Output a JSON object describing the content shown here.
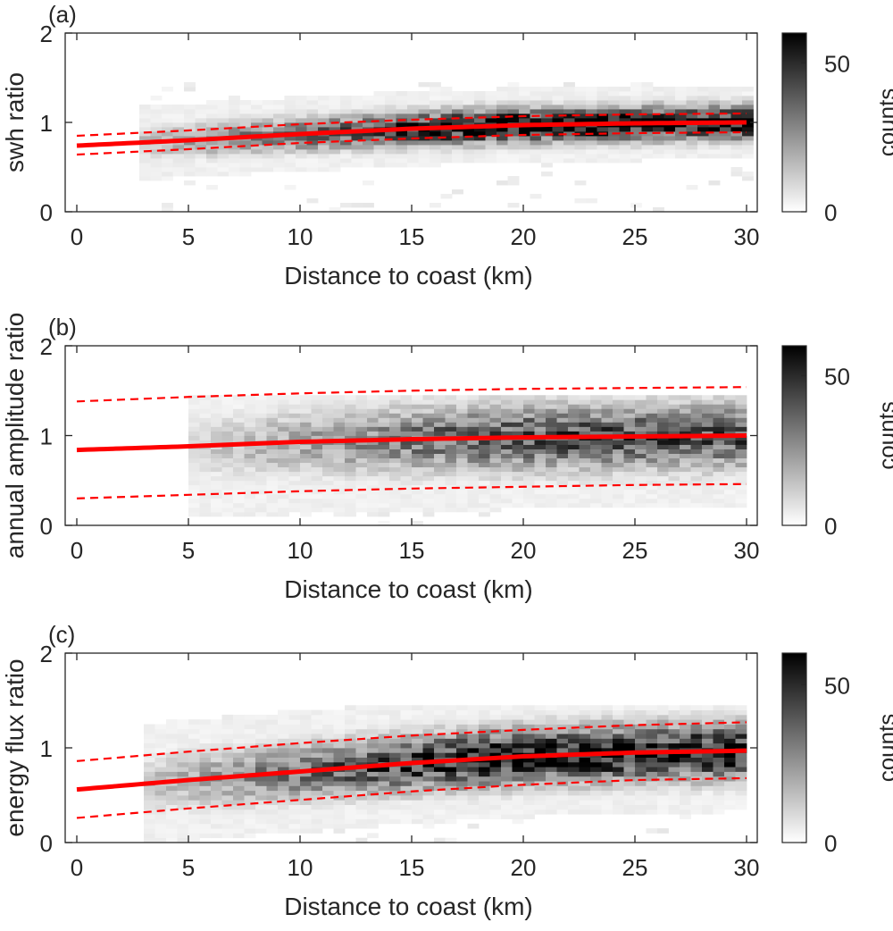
{
  "figure": {
    "type": "heatmap",
    "colors": {
      "fit_line": "#ff0000",
      "axis": "#262626",
      "background": "#ffffff"
    }
  },
  "chart_data": [
    {
      "type": "heatmap",
      "panel_label": "(a)",
      "title": "",
      "xlabel": "Distance to coast (km)",
      "ylabel": "swh ratio",
      "xlim": [
        0,
        30
      ],
      "ylim": [
        0,
        2
      ],
      "xticks": [
        "0",
        "5",
        "10",
        "15",
        "20",
        "25",
        "30"
      ],
      "yticks": [
        "0",
        "1",
        "2"
      ],
      "colorbar": {
        "label": "counts",
        "ticks": [
          "0",
          "50"
        ],
        "range": [
          0,
          60
        ],
        "colormap": "gray-reversed"
      },
      "density": {
        "x_start": 2.8,
        "x_end": 30,
        "spread": 0.13,
        "peak_counts": 58
      },
      "series": [
        {
          "name": "fit",
          "style": "solid",
          "x": [
            0,
            5,
            10,
            15,
            20,
            25,
            30
          ],
          "y": [
            0.74,
            0.8,
            0.87,
            0.93,
            0.97,
            0.99,
            1.0
          ]
        },
        {
          "name": "upper bound",
          "style": "dashed",
          "x": [
            0,
            5,
            10,
            15,
            20,
            25,
            30
          ],
          "y": [
            0.85,
            0.91,
            0.98,
            1.03,
            1.07,
            1.09,
            1.1
          ]
        },
        {
          "name": "lower bound",
          "style": "dashed",
          "x": [
            0,
            5,
            10,
            15,
            20,
            25,
            30
          ],
          "y": [
            0.64,
            0.7,
            0.77,
            0.82,
            0.86,
            0.88,
            0.89
          ]
        }
      ]
    },
    {
      "type": "heatmap",
      "panel_label": "(b)",
      "title": "",
      "xlabel": "Distance to coast (km)",
      "ylabel": "annual amplitude ratio",
      "xlim": [
        0,
        30
      ],
      "ylim": [
        0,
        2
      ],
      "xticks": [
        "0",
        "5",
        "10",
        "15",
        "20",
        "25",
        "30"
      ],
      "yticks": [
        "0",
        "1",
        "2"
      ],
      "colorbar": {
        "label": "counts",
        "ticks": [
          "0",
          "50"
        ],
        "range": [
          0,
          60
        ],
        "colormap": "gray-reversed"
      },
      "density": {
        "x_start": 5.0,
        "x_end": 30,
        "spread": 0.25,
        "peak_counts": 40
      },
      "series": [
        {
          "name": "fit",
          "style": "solid",
          "x": [
            0,
            5,
            10,
            15,
            20,
            25,
            30
          ],
          "y": [
            0.84,
            0.88,
            0.93,
            0.96,
            0.98,
            0.99,
            1.0
          ]
        },
        {
          "name": "upper bound",
          "style": "dashed",
          "x": [
            0,
            5,
            10,
            15,
            20,
            25,
            30
          ],
          "y": [
            1.38,
            1.43,
            1.47,
            1.5,
            1.52,
            1.53,
            1.54
          ]
        },
        {
          "name": "lower bound",
          "style": "dashed",
          "x": [
            0,
            5,
            10,
            15,
            20,
            25,
            30
          ],
          "y": [
            0.3,
            0.34,
            0.38,
            0.41,
            0.43,
            0.45,
            0.46
          ]
        }
      ]
    },
    {
      "type": "heatmap",
      "panel_label": "(c)",
      "title": "",
      "xlabel": "Distance to coast (km)",
      "ylabel": "energy flux ratio",
      "xlim": [
        0,
        30
      ],
      "ylim": [
        0,
        2
      ],
      "xticks": [
        "0",
        "5",
        "10",
        "15",
        "20",
        "25",
        "30"
      ],
      "yticks": [
        "0",
        "1",
        "2"
      ],
      "colorbar": {
        "label": "counts",
        "ticks": [
          "0",
          "50"
        ],
        "range": [
          0,
          60
        ],
        "colormap": "gray-reversed"
      },
      "density": {
        "x_start": 3.0,
        "x_end": 30,
        "spread": 0.2,
        "peak_counts": 55
      },
      "series": [
        {
          "name": "fit",
          "style": "solid",
          "x": [
            0,
            5,
            10,
            15,
            20,
            25,
            30
          ],
          "y": [
            0.56,
            0.66,
            0.75,
            0.84,
            0.91,
            0.95,
            0.97
          ]
        },
        {
          "name": "upper bound",
          "style": "dashed",
          "x": [
            0,
            5,
            10,
            15,
            20,
            25,
            30
          ],
          "y": [
            0.86,
            0.96,
            1.05,
            1.13,
            1.19,
            1.24,
            1.27
          ]
        },
        {
          "name": "lower bound",
          "style": "dashed",
          "x": [
            0,
            5,
            10,
            15,
            20,
            25,
            30
          ],
          "y": [
            0.26,
            0.36,
            0.45,
            0.54,
            0.61,
            0.66,
            0.68
          ]
        }
      ]
    }
  ]
}
